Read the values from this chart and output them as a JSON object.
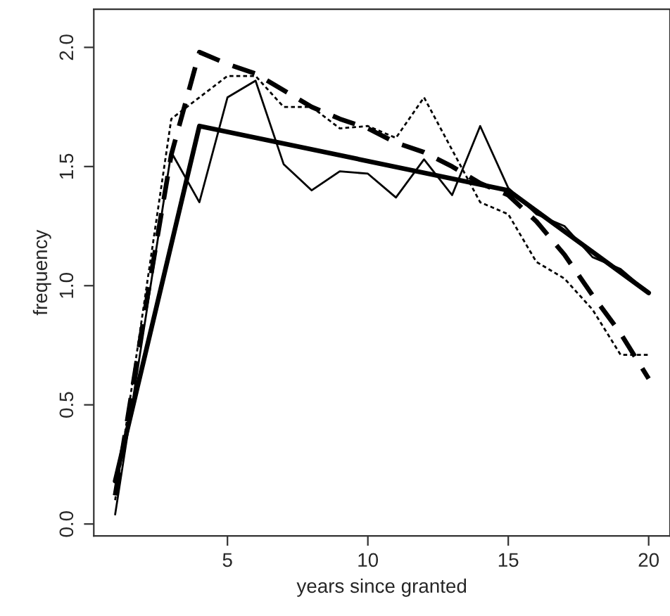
{
  "chart_data": {
    "type": "line",
    "xlabel": "years since granted",
    "ylabel": "frequency",
    "xlim": [
      0.24,
      20.76
    ],
    "ylim": [
      -0.05,
      2.16
    ],
    "xticks": [
      5,
      10,
      15,
      20
    ],
    "yticks": [
      {
        "value": 0,
        "label": "0.0"
      },
      {
        "value": 0.5,
        "label": "0.5"
      },
      {
        "value": 1,
        "label": "1.0"
      },
      {
        "value": 1.5,
        "label": "1.5"
      },
      {
        "value": 2,
        "label": "2.0"
      }
    ],
    "grid": false,
    "legend": false,
    "series": [
      {
        "color": "#000000",
        "line_style": "solid",
        "x": [
          1,
          2,
          3,
          4,
          5,
          6,
          7,
          8,
          9,
          10,
          11,
          12,
          13,
          14,
          15,
          16,
          17,
          18,
          19,
          20
        ],
        "values": [
          0.04,
          0.8,
          1.56,
          1.35,
          1.79,
          1.86,
          1.51,
          1.4,
          1.48,
          1.47,
          1.37,
          1.53,
          1.38,
          1.67,
          1.41,
          1.3,
          1.25,
          1.12,
          1.07,
          0.97
        ]
      },
      {
        "color": "#000000",
        "line_style": "solid",
        "x": [
          1,
          4,
          15,
          20
        ],
        "values": [
          0.18,
          1.67,
          1.4,
          0.97
        ]
      },
      {
        "color": "#000000",
        "line_style": "dashed",
        "x": [
          1,
          2,
          3,
          4,
          5,
          6,
          7,
          8,
          9,
          10,
          11,
          12,
          13,
          14,
          15,
          16,
          17,
          18,
          19,
          20
        ],
        "values": [
          0.12,
          0.85,
          1.55,
          1.98,
          1.93,
          1.89,
          1.82,
          1.75,
          1.7,
          1.66,
          1.6,
          1.56,
          1.5,
          1.43,
          1.38,
          1.27,
          1.13,
          0.96,
          0.8,
          0.61
        ]
      },
      {
        "color": "#000000",
        "line_style": "dotted",
        "x": [
          1,
          2,
          3,
          4,
          5,
          6,
          7,
          8,
          9,
          10,
          11,
          12,
          13,
          14,
          15,
          16,
          17,
          18,
          19,
          20
        ],
        "values": [
          0.1,
          0.9,
          1.7,
          1.79,
          1.88,
          1.88,
          1.75,
          1.75,
          1.66,
          1.67,
          1.62,
          1.79,
          1.57,
          1.35,
          1.3,
          1.1,
          1.03,
          0.9,
          0.71,
          0.71
        ]
      }
    ]
  }
}
